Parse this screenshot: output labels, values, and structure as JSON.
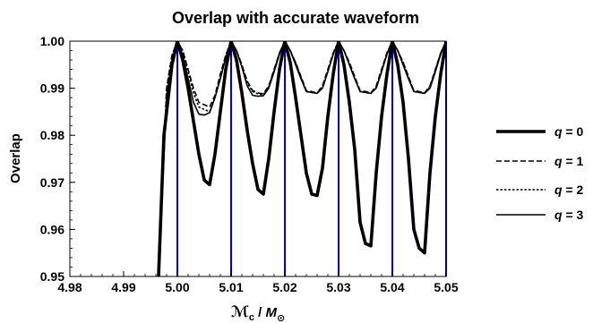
{
  "chart_data": {
    "type": "line",
    "title": "Overlap with accurate waveform",
    "xlabel_main": "ℳ",
    "xlabel_sub": "c",
    "xlabel_mid": " / ",
    "xlabel_M": "M",
    "xlabel_sun": "⊙",
    "ylabel": "Overlap",
    "xlim": [
      4.98,
      5.05
    ],
    "ylim": [
      0.95,
      1.0
    ],
    "xticks": [
      "4.98",
      "4.99",
      "5.00",
      "5.01",
      "5.02",
      "5.03",
      "5.04",
      "5.05"
    ],
    "yticks": [
      "0.95",
      "0.96",
      "0.97",
      "0.98",
      "0.99",
      "1.00"
    ],
    "grid": false,
    "legend_position": "right",
    "vertical_lines": {
      "color": "#0000cc",
      "x": [
        5.0,
        5.01,
        5.02,
        5.03,
        5.04,
        5.05
      ]
    },
    "series": [
      {
        "name": "q = 0",
        "style": "solid-thick",
        "x": [
          4.9965,
          4.9975,
          4.999,
          5.0,
          5.001,
          5.002,
          5.003,
          5.004,
          5.005,
          5.006,
          5.007,
          5.008,
          5.009,
          5.01,
          5.011,
          5.012,
          5.013,
          5.014,
          5.015,
          5.016,
          5.017,
          5.018,
          5.019,
          5.02,
          5.021,
          5.022,
          5.023,
          5.024,
          5.025,
          5.026,
          5.027,
          5.028,
          5.029,
          5.03,
          5.031,
          5.032,
          5.033,
          5.034,
          5.035,
          5.036,
          5.037,
          5.038,
          5.039,
          5.04,
          5.041,
          5.042,
          5.043,
          5.044,
          5.045,
          5.046,
          5.047,
          5.048,
          5.049,
          5.05
        ],
        "y": [
          0.95,
          0.98,
          0.995,
          1.0,
          0.996,
          0.99,
          0.983,
          0.976,
          0.9705,
          0.9695,
          0.976,
          0.985,
          0.994,
          1.0,
          0.996,
          0.989,
          0.981,
          0.974,
          0.9685,
          0.9675,
          0.975,
          0.985,
          0.994,
          1.0,
          0.9955,
          0.988,
          0.98,
          0.972,
          0.9675,
          0.9672,
          0.973,
          0.984,
          0.993,
          1.0,
          0.995,
          0.987,
          0.977,
          0.9615,
          0.957,
          0.9565,
          0.972,
          0.984,
          0.993,
          1.0,
          0.995,
          0.987,
          0.975,
          0.96,
          0.956,
          0.955,
          0.972,
          0.984,
          0.993,
          1.0
        ]
      },
      {
        "name": "q = 1",
        "style": "dashed",
        "x": [
          4.9965,
          4.998,
          4.999,
          5.0,
          5.001,
          5.002,
          5.003,
          5.004,
          5.005,
          5.006,
          5.007,
          5.008,
          5.009,
          5.01,
          5.011,
          5.012,
          5.013,
          5.014,
          5.015,
          5.016,
          5.017,
          5.018,
          5.019,
          5.02,
          5.021,
          5.022,
          5.023,
          5.024,
          5.025,
          5.026,
          5.027,
          5.028,
          5.029,
          5.03,
          5.031,
          5.032,
          5.033,
          5.034,
          5.035,
          5.036,
          5.037,
          5.038,
          5.039,
          5.04,
          5.041,
          5.042,
          5.043,
          5.044,
          5.045,
          5.046,
          5.047,
          5.048,
          5.049,
          5.05
        ],
        "y": [
          0.95,
          0.99,
          0.997,
          1.0,
          0.998,
          0.994,
          0.99,
          0.987,
          0.9865,
          0.986,
          0.9885,
          0.993,
          0.997,
          1.0,
          0.998,
          0.995,
          0.9915,
          0.9895,
          0.989,
          0.9888,
          0.9905,
          0.994,
          0.9975,
          1.0,
          0.998,
          0.9955,
          0.9925,
          0.9895,
          0.9893,
          0.989,
          0.9905,
          0.994,
          0.9975,
          1.0,
          0.998,
          0.9955,
          0.9925,
          0.9895,
          0.9893,
          0.989,
          0.9905,
          0.994,
          0.9975,
          1.0,
          0.998,
          0.9955,
          0.9925,
          0.9895,
          0.9893,
          0.989,
          0.9905,
          0.994,
          0.9975,
          1.0
        ]
      },
      {
        "name": "q = 2",
        "style": "dotted",
        "x": [
          4.9965,
          4.998,
          4.999,
          5.0,
          5.001,
          5.002,
          5.003,
          5.004,
          5.005,
          5.006,
          5.007,
          5.008,
          5.009,
          5.01,
          5.011,
          5.012,
          5.013,
          5.014,
          5.015,
          5.016,
          5.017,
          5.018,
          5.019,
          5.02,
          5.021,
          5.022,
          5.023,
          5.024,
          5.025,
          5.026,
          5.027,
          5.028,
          5.029,
          5.03,
          5.031,
          5.032,
          5.033,
          5.034,
          5.035,
          5.036,
          5.037,
          5.038,
          5.039,
          5.04,
          5.041,
          5.042,
          5.043,
          5.044,
          5.045,
          5.046,
          5.047,
          5.048,
          5.049,
          5.05
        ],
        "y": [
          0.95,
          0.99,
          0.997,
          1.0,
          0.998,
          0.9935,
          0.989,
          0.986,
          0.9855,
          0.985,
          0.988,
          0.9925,
          0.997,
          1.0,
          0.998,
          0.995,
          0.9912,
          0.9893,
          0.9888,
          0.9886,
          0.9903,
          0.9938,
          0.9975,
          1.0,
          0.998,
          0.9955,
          0.9923,
          0.9893,
          0.9891,
          0.9889,
          0.9903,
          0.9938,
          0.9975,
          1.0,
          0.998,
          0.9955,
          0.9923,
          0.9893,
          0.9891,
          0.9889,
          0.9903,
          0.9938,
          0.9975,
          1.0,
          0.998,
          0.9955,
          0.9923,
          0.9893,
          0.9891,
          0.9889,
          0.9903,
          0.9938,
          0.9975,
          1.0
        ]
      },
      {
        "name": "q = 3",
        "style": "solid-thin",
        "x": [
          4.9965,
          4.998,
          4.999,
          5.0,
          5.001,
          5.002,
          5.003,
          5.004,
          5.005,
          5.006,
          5.007,
          5.008,
          5.009,
          5.01,
          5.011,
          5.012,
          5.013,
          5.014,
          5.015,
          5.016,
          5.017,
          5.018,
          5.019,
          5.02,
          5.021,
          5.022,
          5.023,
          5.024,
          5.025,
          5.026,
          5.027,
          5.028,
          5.029,
          5.03,
          5.031,
          5.032,
          5.033,
          5.034,
          5.035,
          5.036,
          5.037,
          5.038,
          5.039,
          5.04,
          5.041,
          5.042,
          5.043,
          5.044,
          5.045,
          5.046,
          5.047,
          5.048,
          5.049,
          5.05
        ],
        "y": [
          0.95,
          0.988,
          0.996,
          1.0,
          0.997,
          0.992,
          0.987,
          0.9845,
          0.9843,
          0.9848,
          0.988,
          0.992,
          0.9965,
          1.0,
          0.998,
          0.9945,
          0.9905,
          0.9885,
          0.9883,
          0.9884,
          0.99,
          0.9935,
          0.9972,
          1.0,
          0.998,
          0.995,
          0.992,
          0.9893,
          0.9891,
          0.9889,
          0.99,
          0.9935,
          0.9972,
          1.0,
          0.998,
          0.995,
          0.992,
          0.9893,
          0.9891,
          0.9889,
          0.99,
          0.9935,
          0.9972,
          1.0,
          0.998,
          0.995,
          0.992,
          0.9893,
          0.9891,
          0.9889,
          0.99,
          0.9935,
          0.9972,
          1.0
        ]
      }
    ]
  }
}
